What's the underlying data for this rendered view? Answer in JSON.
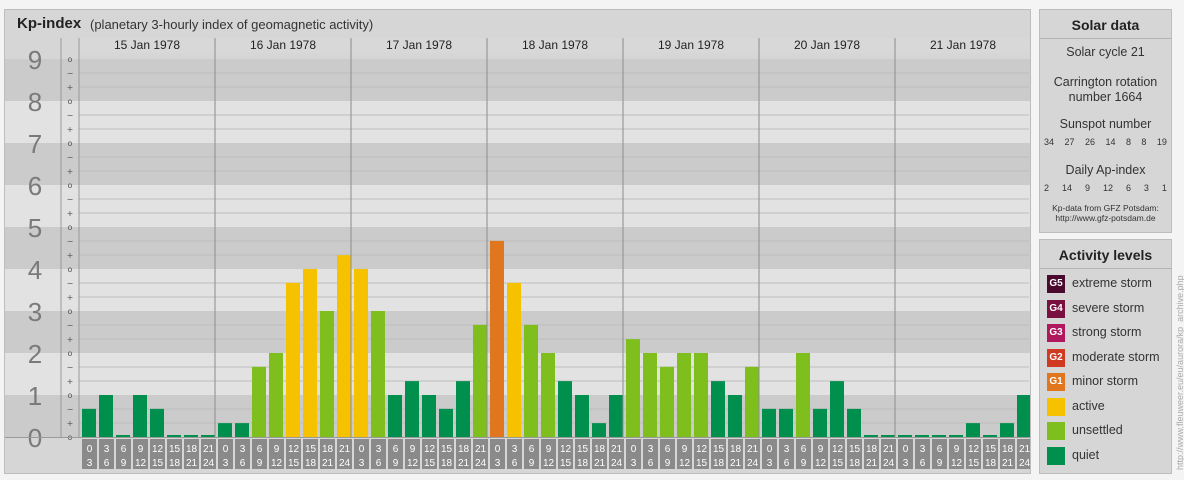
{
  "header": {
    "title": "Kp-index",
    "subtitle": "(planetary 3-hourly index of geomagnetic activity)"
  },
  "chart_data": {
    "type": "bar",
    "title": "Kp-index",
    "subtitle": "(planetary 3-hourly index of geomagnetic activity)",
    "ylim": [
      0,
      9
    ],
    "y_tick_labels": [
      "0",
      "1",
      "2",
      "3",
      "4",
      "5",
      "6",
      "7",
      "8",
      "9"
    ],
    "minor_tick_labels": [
      "o",
      "+",
      "−"
    ],
    "days": [
      "15 Jan 1978",
      "16 Jan 1978",
      "17 Jan 1978",
      "18 Jan 1978",
      "19 Jan 1978",
      "20 Jan 1978",
      "21 Jan 1978"
    ],
    "interval_start_labels": [
      "0",
      "3",
      "6",
      "9",
      "12",
      "15",
      "18",
      "21"
    ],
    "interval_end_labels": [
      "3",
      "6",
      "9",
      "12",
      "15",
      "18",
      "21",
      "24"
    ],
    "values": [
      [
        0.67,
        1.0,
        0.0,
        1.0,
        0.67,
        0.0,
        0.0,
        0.0
      ],
      [
        0.33,
        0.33,
        1.67,
        2.0,
        3.67,
        4.0,
        3.0,
        4.33
      ],
      [
        4.0,
        3.0,
        1.0,
        1.33,
        1.0,
        0.67,
        1.33,
        2.67
      ],
      [
        4.67,
        3.67,
        2.67,
        2.0,
        1.33,
        1.0,
        0.33,
        1.0
      ],
      [
        2.33,
        2.0,
        1.67,
        2.0,
        2.0,
        1.33,
        1.0,
        1.67
      ],
      [
        0.67,
        0.67,
        2.0,
        0.67,
        1.33,
        0.67,
        0.0,
        0.0
      ],
      [
        0.0,
        0.0,
        0.0,
        0.0,
        0.33,
        0.0,
        0.33,
        1.0
      ]
    ],
    "legend": {
      "title": "Activity levels",
      "placement": "right",
      "items": [
        {
          "code": "G5",
          "label": "extreme storm",
          "color": "#4a0a2e"
        },
        {
          "code": "G4",
          "label": "severe storm",
          "color": "#7a1040"
        },
        {
          "code": "G3",
          "label": "strong storm",
          "color": "#b0185e"
        },
        {
          "code": "G2",
          "label": "moderate storm",
          "color": "#d03a20"
        },
        {
          "code": "G1",
          "label": "minor storm",
          "color": "#e0761e"
        },
        {
          "code": "",
          "label": "active",
          "color": "#f6c200"
        },
        {
          "code": "",
          "label": "unsettled",
          "color": "#7ebf1e"
        },
        {
          "code": "",
          "label": "quiet",
          "color": "#008f4c"
        }
      ]
    }
  },
  "solar_data": {
    "title": "Solar data",
    "cycle": "Solar cycle 21",
    "carrington_line1": "Carrington rotation",
    "carrington_line2": "number 1664",
    "sunspot_title": "Sunspot number",
    "sunspot_values": [
      "34",
      "27",
      "26",
      "14",
      "8",
      "8",
      "19"
    ],
    "ap_title": "Daily Ap-index",
    "ap_values": [
      "2",
      "14",
      "9",
      "12",
      "6",
      "3",
      "1"
    ],
    "source_line1": "Kp-data from GFZ Potsdam:",
    "source_line2": "http://www.gfz-potsdam.de"
  },
  "credit": "http://www.fleuweer.eu/eu/aurora/kp_archive.php",
  "colors": {
    "panel_bg": "#d6d6d6",
    "band_dark": "#cbcbcb",
    "band_light": "#e2e2e2",
    "label_box": "#8a8a8a"
  }
}
